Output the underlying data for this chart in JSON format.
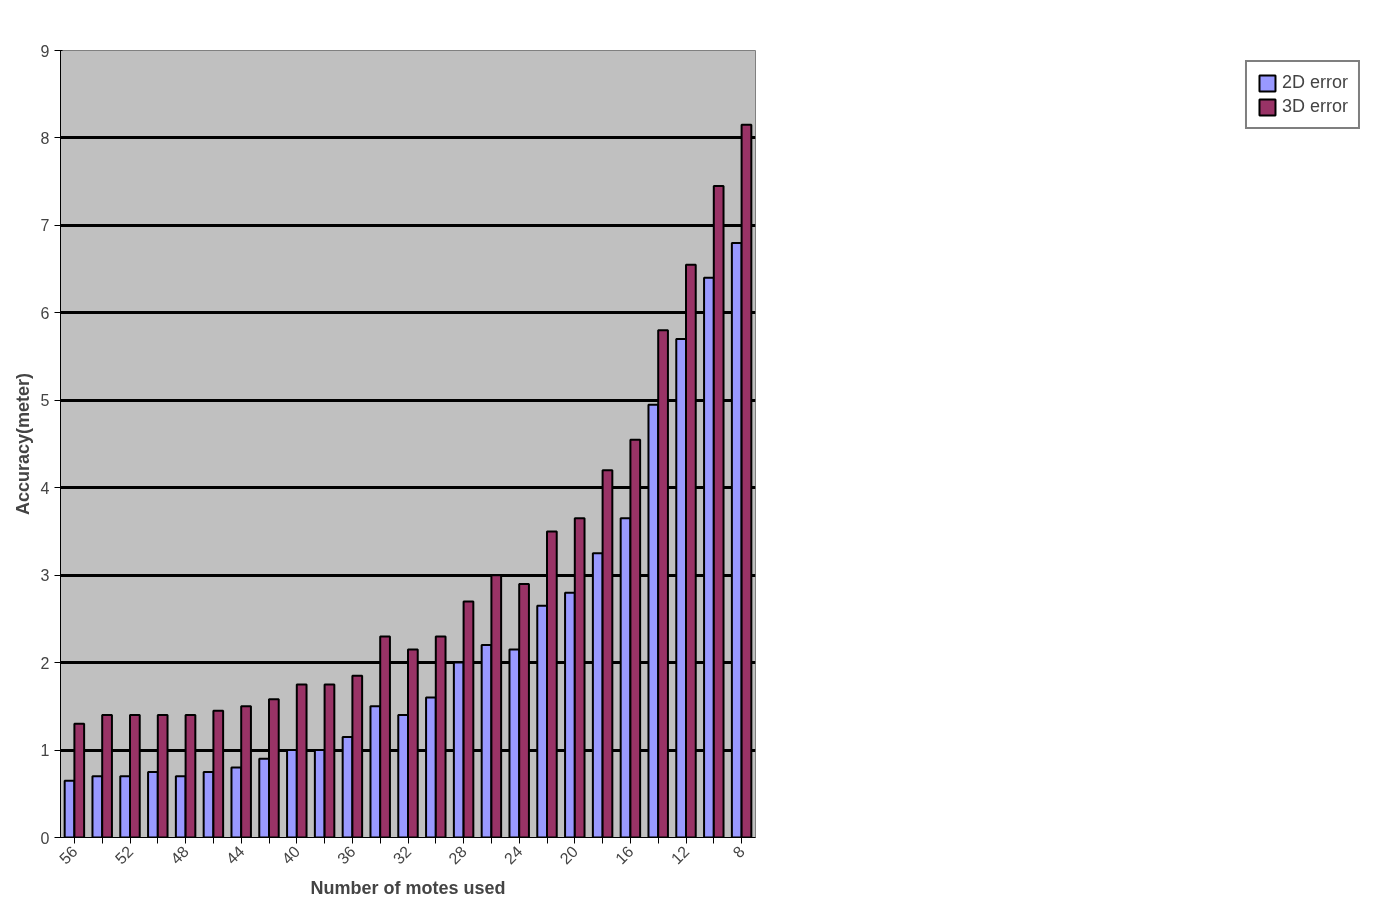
{
  "chart_data": {
    "type": "bar",
    "xlabel": "Number of motes used",
    "ylabel": "Accuracy(meter)",
    "categories": [
      "56",
      null,
      "52",
      null,
      "48",
      null,
      "44",
      null,
      "40",
      null,
      "36",
      null,
      "32",
      null,
      "28",
      null,
      "24",
      null,
      "20",
      null,
      "16",
      null,
      "12",
      null,
      "8"
    ],
    "series": [
      {
        "name": "2D error",
        "color": "#9999ff",
        "values": [
          0.65,
          0.7,
          0.7,
          0.75,
          0.7,
          0.75,
          0.8,
          0.9,
          1.0,
          1.0,
          1.15,
          1.5,
          1.4,
          1.6,
          2.0,
          2.2,
          2.15,
          2.65,
          2.8,
          3.25,
          3.65,
          4.95,
          5.7,
          6.4,
          6.8
        ]
      },
      {
        "name": "3D error",
        "color": "#993366",
        "values": [
          1.3,
          1.4,
          1.4,
          1.4,
          1.4,
          1.45,
          1.5,
          1.58,
          1.75,
          1.75,
          1.85,
          2.3,
          2.15,
          2.3,
          2.7,
          3.0,
          2.9,
          3.5,
          3.65,
          4.2,
          4.55,
          5.8,
          6.55,
          7.45,
          8.15
        ]
      }
    ],
    "ylim": [
      0,
      9
    ],
    "yticks": [
      0,
      1,
      2,
      3,
      4,
      5,
      6,
      7,
      8,
      9
    ],
    "grid": "y",
    "legend": "right"
  }
}
